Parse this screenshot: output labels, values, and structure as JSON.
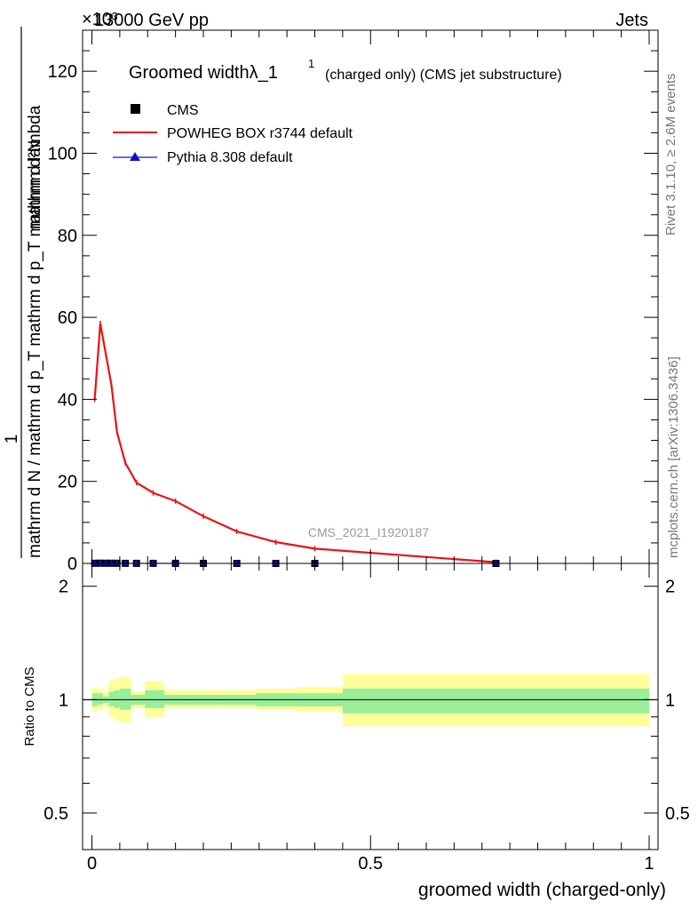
{
  "header": {
    "energy": "13000 GeV pp",
    "exponent": "×10³",
    "category": "Jets"
  },
  "side": {
    "rivet": "Rivet 3.1.10, ≥ 2.6M events",
    "mcplots": "mcplots.cern.ch [arXiv:1306.3436]"
  },
  "watermark": "CMS_2021_I1920187",
  "chart_data": [
    {
      "type": "line",
      "title": "Groomed widthλ_1¹ (charged only) (CMS jet substructure)",
      "title_main": "Groomed widthλ_1",
      "title_sup": "1",
      "title_rest": "(charged only) (CMS jet substructure)",
      "ylabel_numerator": "1",
      "ylabel_denominator": "mathrm d N / mathrm d p_T mathrm d p_T mathrm d lambda",
      "ylabel_top": "mathrm d²N",
      "xlim": [
        0,
        1
      ],
      "ylim": [
        0,
        130
      ],
      "y_ticks": [
        0,
        20,
        40,
        60,
        80,
        100,
        120
      ],
      "legend": [
        {
          "name": "CMS",
          "color": "#000000",
          "marker": "square"
        },
        {
          "name": "POWHEG BOX r3744 default",
          "color": "#ee1111",
          "marker": "line"
        },
        {
          "name": "Pythia 8.308 default",
          "color": "#1111cc",
          "marker": "triangle"
        }
      ],
      "series": [
        {
          "name": "POWHEG BOX r3744 default",
          "color": "#ee1111",
          "x": [
            0.005,
            0.015,
            0.025,
            0.035,
            0.045,
            0.06,
            0.08,
            0.11,
            0.15,
            0.2,
            0.26,
            0.33,
            0.4,
            0.725
          ],
          "y": [
            40,
            58.5,
            51,
            43.5,
            32,
            24.5,
            19.7,
            17.2,
            15.2,
            11.5,
            7.8,
            5.2,
            3.6,
            0.3
          ]
        },
        {
          "name": "CMS",
          "color": "#000000",
          "x": [
            0.005,
            0.015,
            0.025,
            0.035,
            0.045,
            0.06,
            0.08,
            0.11,
            0.15,
            0.2,
            0.26,
            0.33,
            0.4,
            0.725
          ],
          "y": [
            0.04,
            0.06,
            0.05,
            0.045,
            0.035,
            0.025,
            0.02,
            0.018,
            0.016,
            0.012,
            0.008,
            0.005,
            0.004,
            0.0003
          ]
        },
        {
          "name": "Pythia 8.308 default",
          "color": "#1111cc",
          "x": [
            0.005,
            0.015,
            0.025,
            0.035,
            0.045,
            0.06,
            0.08,
            0.11,
            0.15,
            0.2,
            0.26,
            0.33,
            0.4,
            0.725
          ],
          "y": [
            0.04,
            0.06,
            0.05,
            0.045,
            0.035,
            0.025,
            0.02,
            0.018,
            0.016,
            0.012,
            0.008,
            0.005,
            0.004,
            0.0003
          ]
        }
      ]
    },
    {
      "type": "area",
      "ylabel": "Ratio to CMS",
      "xlabel": "groomed width (charged-only)",
      "xlim": [
        0,
        1
      ],
      "ylim": [
        0.4,
        2.3
      ],
      "log_y": true,
      "x_tick_labels": [
        "0",
        "0.5",
        "1"
      ],
      "y_tick_labels": [
        "0.5",
        "1",
        "2"
      ],
      "reference": 1,
      "bands": [
        {
          "x0": 0.0,
          "x1": 0.01,
          "stat": [
            0.96,
            1.04
          ],
          "total": [
            0.93,
            1.08
          ]
        },
        {
          "x0": 0.01,
          "x1": 0.02,
          "stat": [
            0.97,
            1.04
          ],
          "total": [
            0.94,
            1.07
          ]
        },
        {
          "x0": 0.02,
          "x1": 0.03,
          "stat": [
            0.98,
            1.02
          ],
          "total": [
            0.95,
            1.05
          ]
        },
        {
          "x0": 0.03,
          "x1": 0.04,
          "stat": [
            0.96,
            1.05
          ],
          "total": [
            0.9,
            1.12
          ]
        },
        {
          "x0": 0.04,
          "x1": 0.05,
          "stat": [
            0.95,
            1.06
          ],
          "total": [
            0.88,
            1.14
          ]
        },
        {
          "x0": 0.05,
          "x1": 0.07,
          "stat": [
            0.94,
            1.07
          ],
          "total": [
            0.87,
            1.15
          ]
        },
        {
          "x0": 0.07,
          "x1": 0.095,
          "stat": [
            0.97,
            1.03
          ],
          "total": [
            0.95,
            1.05
          ]
        },
        {
          "x0": 0.095,
          "x1": 0.13,
          "stat": [
            0.95,
            1.06
          ],
          "total": [
            0.9,
            1.12
          ]
        },
        {
          "x0": 0.13,
          "x1": 0.175,
          "stat": [
            0.97,
            1.03
          ],
          "total": [
            0.95,
            1.06
          ]
        },
        {
          "x0": 0.175,
          "x1": 0.23,
          "stat": [
            0.97,
            1.03
          ],
          "total": [
            0.95,
            1.06
          ]
        },
        {
          "x0": 0.23,
          "x1": 0.295,
          "stat": [
            0.97,
            1.03
          ],
          "total": [
            0.95,
            1.06
          ]
        },
        {
          "x0": 0.295,
          "x1": 0.365,
          "stat": [
            0.96,
            1.04
          ],
          "total": [
            0.94,
            1.07
          ]
        },
        {
          "x0": 0.365,
          "x1": 0.45,
          "stat": [
            0.96,
            1.04
          ],
          "total": [
            0.93,
            1.08
          ]
        },
        {
          "x0": 0.45,
          "x1": 1.0,
          "stat": [
            0.92,
            1.07
          ],
          "total": [
            0.85,
            1.17
          ]
        }
      ]
    }
  ]
}
